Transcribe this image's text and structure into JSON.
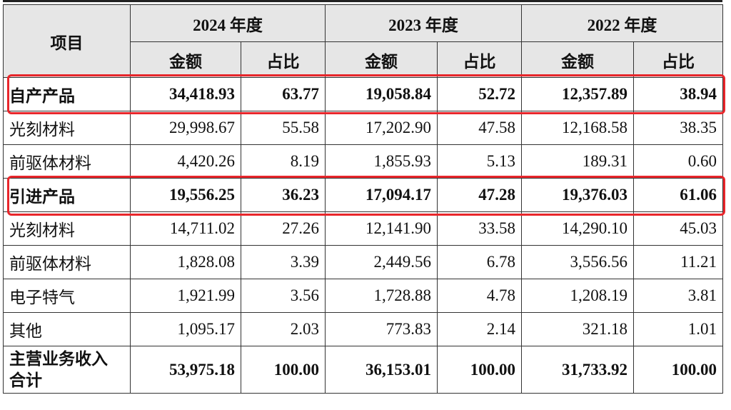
{
  "header": {
    "item": "项目",
    "years": [
      "2024 年度",
      "2023 年度",
      "2022 年度"
    ],
    "amount": "金额",
    "ratio": "占比"
  },
  "rows": [
    {
      "label": "自产产品",
      "v": [
        "34,418.93",
        "63.77",
        "19,058.84",
        "52.72",
        "12,357.89",
        "38.94"
      ],
      "bold": true,
      "highlight": true
    },
    {
      "label": "光刻材料",
      "v": [
        "29,998.67",
        "55.58",
        "17,202.90",
        "47.58",
        "12,168.58",
        "38.35"
      ]
    },
    {
      "label": "前驱体材料",
      "v": [
        "4,420.26",
        "8.19",
        "1,855.93",
        "5.13",
        "189.31",
        "0.60"
      ]
    },
    {
      "label": "引进产品",
      "v": [
        "19,556.25",
        "36.23",
        "17,094.17",
        "47.28",
        "19,376.03",
        "61.06"
      ],
      "bold": true,
      "highlight": true
    },
    {
      "label": "光刻材料",
      "v": [
        "14,711.02",
        "27.26",
        "12,141.90",
        "33.58",
        "14,290.10",
        "45.03"
      ]
    },
    {
      "label": "前驱体材料",
      "v": [
        "1,828.08",
        "3.39",
        "2,449.56",
        "6.78",
        "3,556.56",
        "11.21"
      ]
    },
    {
      "label": "电子特气",
      "v": [
        "1,921.99",
        "3.56",
        "1,728.88",
        "4.78",
        "1,208.19",
        "3.81"
      ]
    },
    {
      "label": "其他",
      "v": [
        "1,095.17",
        "2.03",
        "773.83",
        "2.14",
        "321.18",
        "1.01"
      ]
    }
  ],
  "total": {
    "label_line1": "主营业务收入",
    "label_line2": "合计",
    "v": [
      "53,975.18",
      "100.00",
      "36,153.01",
      "100.00",
      "31,733.92",
      "100.00"
    ]
  },
  "colors": {
    "highlight": "#e8262b",
    "header_bg": "#e6e6e6"
  }
}
